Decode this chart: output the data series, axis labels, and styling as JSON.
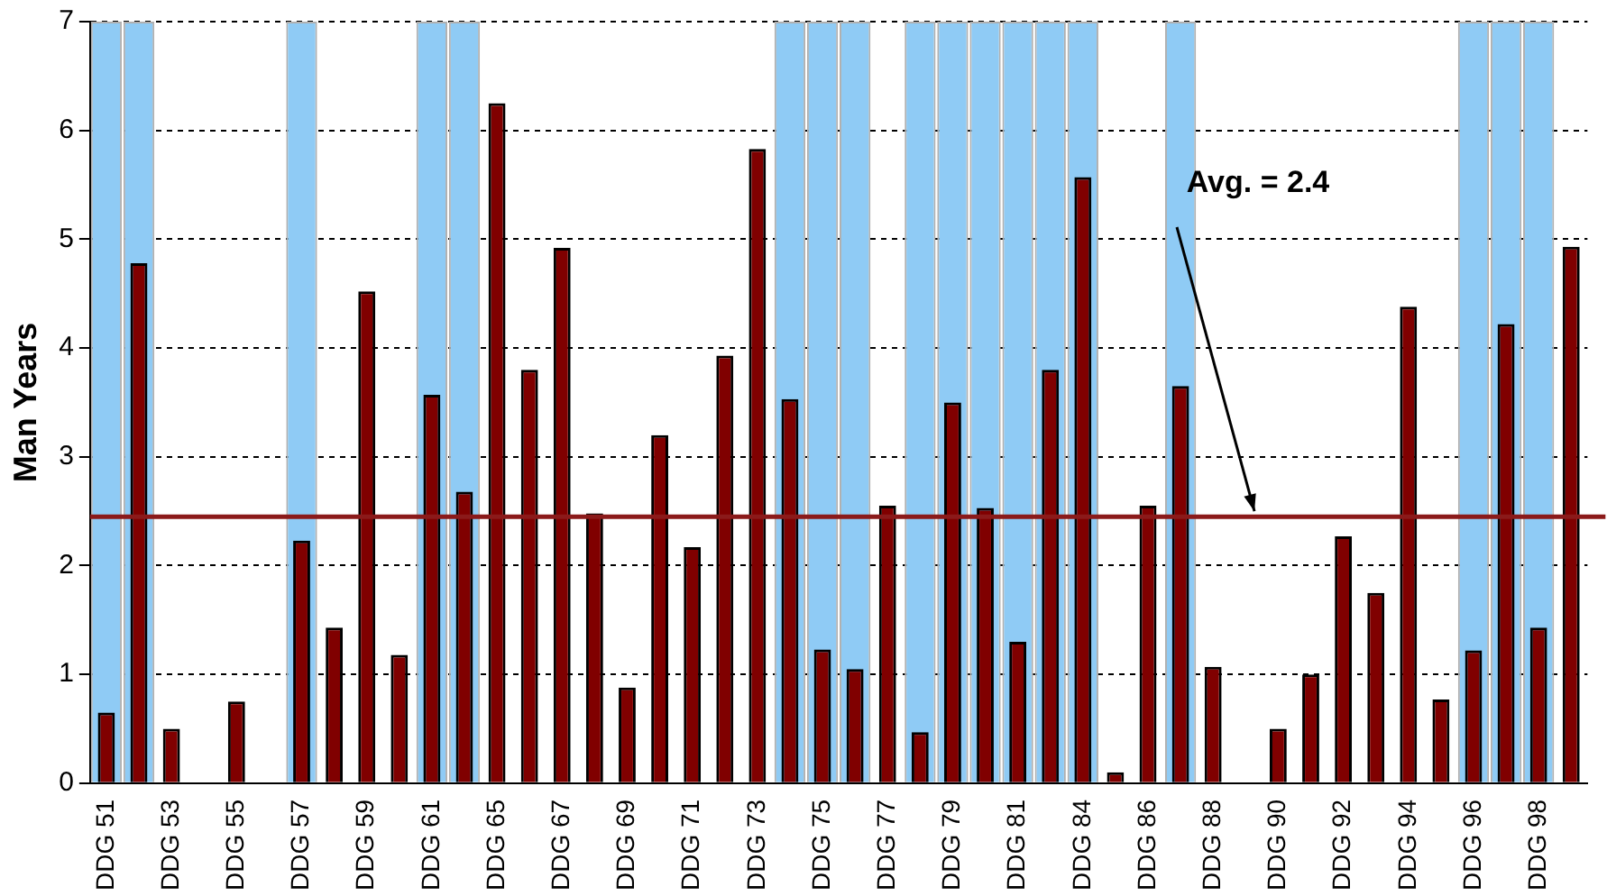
{
  "chart_data": {
    "type": "bar",
    "ylabel": "Man Years",
    "categories": [
      "DDG 51",
      null,
      "DDG 53",
      null,
      "DDG 55",
      null,
      "DDG 57",
      null,
      "DDG 59",
      null,
      "DDG 61",
      null,
      "DDG 65",
      null,
      "DDG 67",
      null,
      "DDG 69",
      null,
      "DDG 71",
      null,
      "DDG 73",
      null,
      "DDG 75",
      null,
      "DDG 77",
      null,
      "DDG 79",
      null,
      "DDG 81",
      null,
      "DDG 84",
      null,
      "DDG 86",
      null,
      "DDG 88",
      null,
      "DDG 90",
      null,
      "DDG 92",
      null,
      "DDG 94",
      null,
      "DDG 96",
      null,
      "DDG 98",
      null
    ],
    "series": [
      {
        "color": "#8fcbf5",
        "values": [
          7,
          7,
          null,
          null,
          null,
          null,
          7,
          null,
          null,
          null,
          7,
          7,
          null,
          null,
          null,
          null,
          null,
          null,
          null,
          null,
          null,
          7,
          7,
          7,
          null,
          7,
          7,
          7,
          7,
          7,
          7,
          null,
          null,
          7,
          null,
          null,
          null,
          null,
          null,
          null,
          null,
          null,
          7,
          7,
          7,
          null
        ]
      },
      {
        "color": "#800000",
        "values": [
          0.65,
          4.78,
          0.5,
          null,
          0.75,
          null,
          2.23,
          1.43,
          4.52,
          1.18,
          3.57,
          2.68,
          6.25,
          3.8,
          4.92,
          2.48,
          0.88,
          3.2,
          2.17,
          3.93,
          5.83,
          3.53,
          1.23,
          1.05,
          2.55,
          0.47,
          3.5,
          2.53,
          1.3,
          3.8,
          5.57,
          0.1,
          2.55,
          3.65,
          1.07,
          null,
          0.5,
          1.0,
          2.27,
          1.75,
          4.38,
          0.77,
          1.22,
          4.22,
          1.43,
          4.93
        ]
      }
    ],
    "ylim": [
      0,
      7
    ],
    "yticks": [
      0,
      1,
      2,
      3,
      4,
      5,
      6,
      7
    ],
    "grid": "y",
    "legend": false,
    "ref_lines": [
      {
        "axis": "y",
        "value": 2.45,
        "label": "Avg. = 2.4",
        "color": "#8b1a1a"
      }
    ]
  }
}
